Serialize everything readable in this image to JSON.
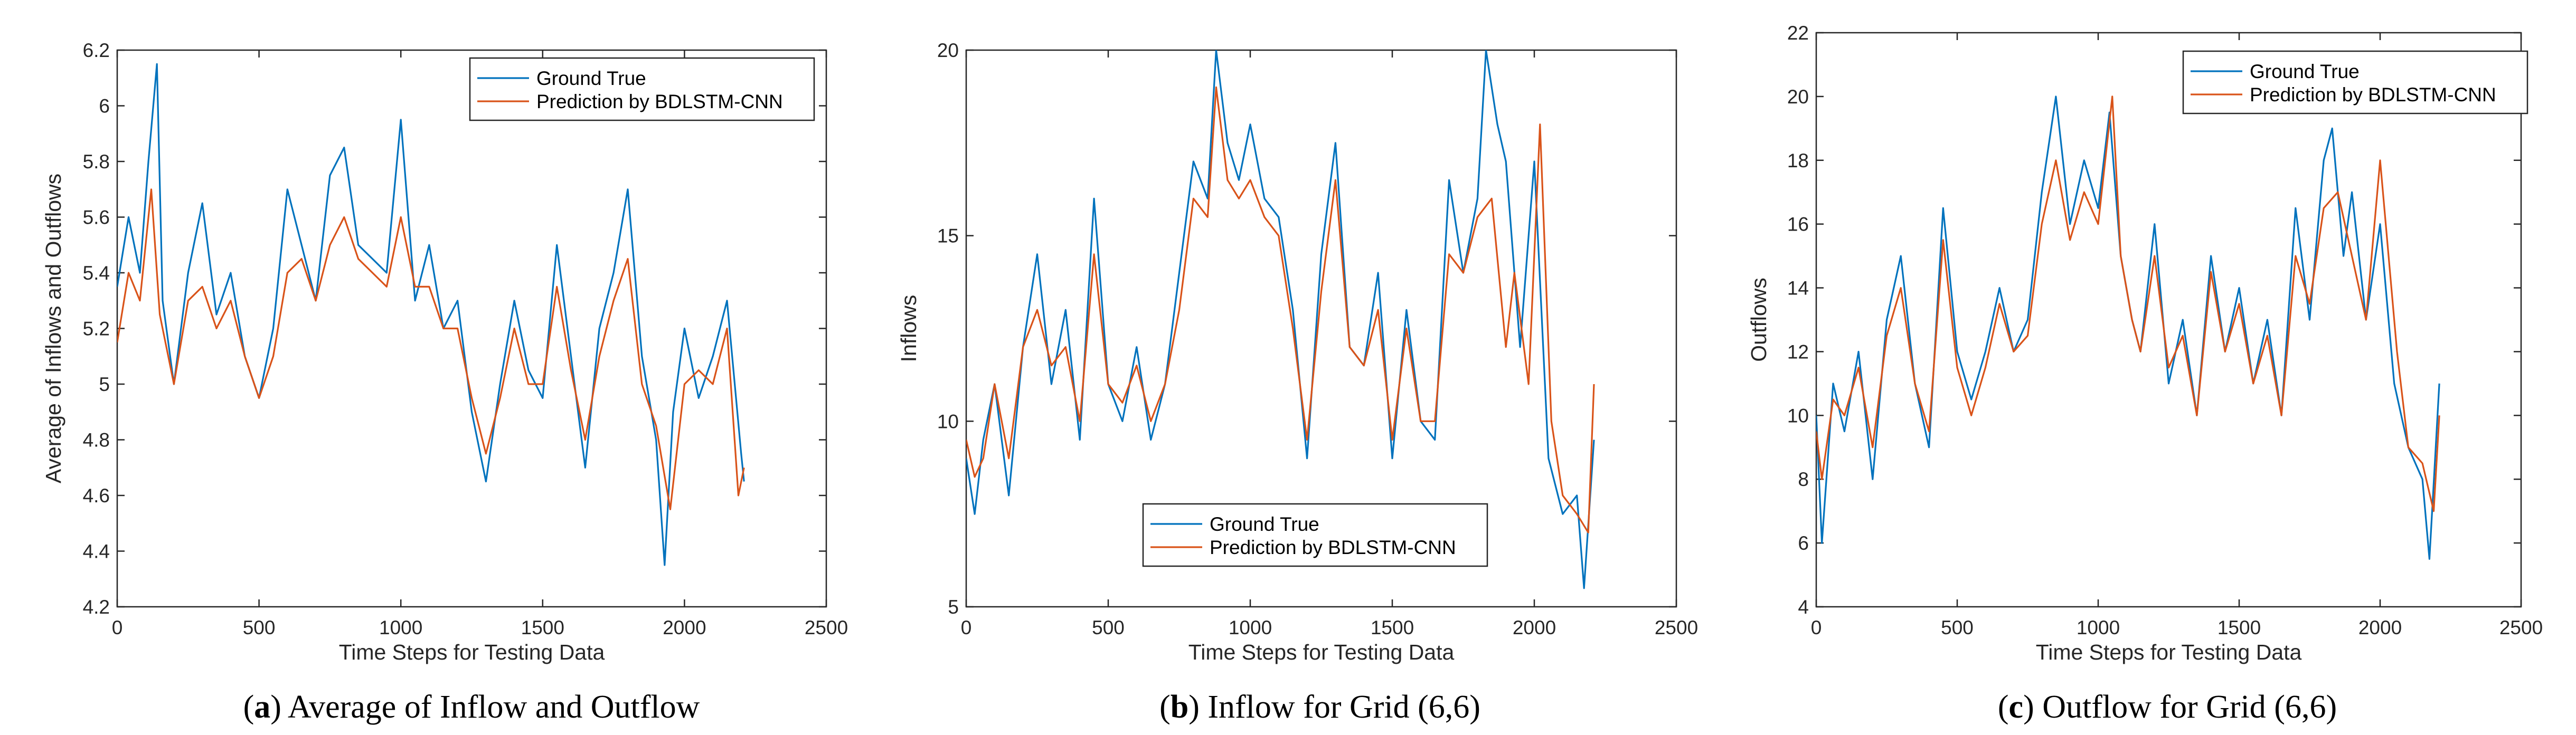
{
  "colors": {
    "ground_true": "#0072bd",
    "prediction": "#d95319",
    "axis": "#262626"
  },
  "chart_data": [
    {
      "type": "line",
      "caption_letter": "a",
      "caption_text": "Average of Inflow and Outflow",
      "xlabel": "Time Steps for Testing Data",
      "ylabel": "Average of Inflows and Outflows",
      "xlim": [
        0,
        2500
      ],
      "ylim": [
        4.2,
        6.2
      ],
      "xticks": [
        0,
        500,
        1000,
        1500,
        2000,
        2500
      ],
      "yticks": [
        4.2,
        4.4,
        4.6,
        4.8,
        5,
        5.2,
        5.4,
        5.6,
        5.8,
        6,
        6.2
      ],
      "legend_position": "top-right",
      "series": [
        {
          "name": "Ground True",
          "x": [
            0,
            40,
            80,
            110,
            140,
            160,
            200,
            250,
            300,
            350,
            400,
            450,
            500,
            550,
            600,
            650,
            700,
            750,
            800,
            850,
            900,
            950,
            1000,
            1050,
            1100,
            1150,
            1200,
            1250,
            1300,
            1350,
            1400,
            1450,
            1500,
            1550,
            1600,
            1650,
            1700,
            1750,
            1800,
            1850,
            1900,
            1930,
            1960,
            2000,
            2050,
            2100,
            2150,
            2200,
            2210
          ],
          "values": [
            5.35,
            5.6,
            5.4,
            5.8,
            6.15,
            5.3,
            5.0,
            5.4,
            5.65,
            5.25,
            5.4,
            5.1,
            4.95,
            5.2,
            5.7,
            5.5,
            5.3,
            5.75,
            5.85,
            5.5,
            5.45,
            5.4,
            5.95,
            5.3,
            5.5,
            5.2,
            5.3,
            4.9,
            4.65,
            5.0,
            5.3,
            5.05,
            4.95,
            5.5,
            5.1,
            4.7,
            5.2,
            5.4,
            5.7,
            5.1,
            4.8,
            4.35,
            4.9,
            5.2,
            4.95,
            5.1,
            5.3,
            4.75,
            4.65
          ]
        },
        {
          "name": "Prediction by BDLSTM-CNN",
          "x": [
            0,
            40,
            80,
            120,
            150,
            200,
            250,
            300,
            350,
            400,
            450,
            500,
            550,
            600,
            650,
            700,
            750,
            800,
            850,
            900,
            950,
            1000,
            1050,
            1100,
            1150,
            1200,
            1250,
            1300,
            1350,
            1400,
            1450,
            1500,
            1550,
            1600,
            1650,
            1700,
            1750,
            1800,
            1850,
            1900,
            1950,
            2000,
            2050,
            2100,
            2150,
            2190,
            2210
          ],
          "values": [
            5.15,
            5.4,
            5.3,
            5.7,
            5.25,
            5.0,
            5.3,
            5.35,
            5.2,
            5.3,
            5.1,
            4.95,
            5.1,
            5.4,
            5.45,
            5.3,
            5.5,
            5.6,
            5.45,
            5.4,
            5.35,
            5.6,
            5.35,
            5.35,
            5.2,
            5.2,
            4.95,
            4.75,
            4.95,
            5.2,
            5.0,
            5.0,
            5.35,
            5.05,
            4.8,
            5.1,
            5.3,
            5.45,
            5.0,
            4.85,
            4.55,
            5.0,
            5.05,
            5.0,
            5.2,
            4.6,
            4.7
          ]
        }
      ]
    },
    {
      "type": "line",
      "caption_letter": "b",
      "caption_text": "Inflow for Grid (6,6)",
      "xlabel": "Time Steps for Testing Data",
      "ylabel": "Inflows",
      "xlim": [
        0,
        2500
      ],
      "ylim": [
        5,
        20
      ],
      "xticks": [
        0,
        500,
        1000,
        1500,
        2000,
        2500
      ],
      "yticks": [
        5,
        10,
        15,
        20
      ],
      "legend_position": "bottom-right",
      "series": [
        {
          "name": "Ground True",
          "x": [
            0,
            30,
            60,
            100,
            150,
            200,
            250,
            300,
            350,
            400,
            450,
            500,
            550,
            600,
            650,
            700,
            750,
            800,
            850,
            880,
            920,
            960,
            1000,
            1050,
            1100,
            1150,
            1200,
            1250,
            1300,
            1350,
            1400,
            1450,
            1500,
            1550,
            1600,
            1650,
            1700,
            1750,
            1800,
            1830,
            1870,
            1900,
            1950,
            2000,
            2050,
            2100,
            2150,
            2175,
            2210
          ],
          "values": [
            9,
            7.5,
            9.5,
            11,
            8,
            12,
            14.5,
            11,
            13,
            9.5,
            16,
            11,
            10,
            12,
            9.5,
            11,
            14,
            17,
            16,
            20,
            17.5,
            16.5,
            18,
            16,
            15.5,
            13,
            9,
            14.5,
            17.5,
            12,
            11.5,
            14,
            9,
            13,
            10,
            9.5,
            16.5,
            14,
            16,
            20,
            18,
            17,
            12,
            17,
            9,
            7.5,
            8,
            5.5,
            9.5
          ]
        },
        {
          "name": "Prediction by BDLSTM-CNN",
          "x": [
            0,
            30,
            60,
            100,
            150,
            200,
            250,
            300,
            350,
            400,
            450,
            500,
            550,
            600,
            650,
            700,
            750,
            800,
            850,
            880,
            920,
            960,
            1000,
            1050,
            1100,
            1150,
            1200,
            1250,
            1300,
            1350,
            1400,
            1450,
            1500,
            1550,
            1600,
            1650,
            1700,
            1750,
            1800,
            1850,
            1900,
            1930,
            1980,
            2020,
            2060,
            2100,
            2150,
            2190,
            2210
          ],
          "values": [
            9.5,
            8.5,
            9,
            11,
            9,
            12,
            13,
            11.5,
            12,
            10,
            14.5,
            11,
            10.5,
            11.5,
            10,
            11,
            13,
            16,
            15.5,
            19,
            16.5,
            16,
            16.5,
            15.5,
            15,
            12.5,
            9.5,
            13.5,
            16.5,
            12,
            11.5,
            13,
            9.5,
            12.5,
            10,
            10,
            14.5,
            14,
            15.5,
            16,
            12,
            14,
            11,
            18,
            10,
            8,
            7.5,
            7,
            11
          ]
        }
      ]
    },
    {
      "type": "line",
      "caption_letter": "c",
      "caption_text": "Outflow for Grid (6,6)",
      "xlabel": "Time Steps for Testing Data",
      "ylabel": "Outflows",
      "xlim": [
        0,
        2500
      ],
      "ylim": [
        4,
        22
      ],
      "xticks": [
        0,
        500,
        1000,
        1500,
        2000,
        2500
      ],
      "yticks": [
        4,
        6,
        8,
        10,
        12,
        14,
        16,
        18,
        20,
        22
      ],
      "legend_position": "top-left",
      "series": [
        {
          "name": "Ground True",
          "x": [
            0,
            20,
            60,
            100,
            150,
            200,
            250,
            300,
            350,
            400,
            450,
            500,
            550,
            600,
            650,
            700,
            750,
            800,
            850,
            900,
            950,
            1000,
            1040,
            1080,
            1120,
            1150,
            1200,
            1250,
            1300,
            1350,
            1400,
            1450,
            1500,
            1550,
            1600,
            1650,
            1700,
            1750,
            1800,
            1830,
            1870,
            1900,
            1950,
            2000,
            2050,
            2100,
            2150,
            2175,
            2210
          ],
          "values": [
            10,
            6,
            11,
            9.5,
            12,
            8,
            13,
            15,
            11,
            9,
            16.5,
            12,
            10.5,
            12,
            14,
            12,
            13,
            17,
            20,
            16,
            18,
            16.5,
            19.5,
            15,
            13,
            12,
            16,
            11,
            13,
            10,
            15,
            12,
            14,
            11,
            13,
            10,
            16.5,
            13,
            18,
            19,
            15,
            17,
            13,
            16,
            11,
            9,
            8,
            5.5,
            11
          ]
        },
        {
          "name": "Prediction by BDLSTM-CNN",
          "x": [
            0,
            20,
            60,
            100,
            150,
            200,
            250,
            300,
            350,
            400,
            450,
            500,
            550,
            600,
            650,
            700,
            750,
            800,
            850,
            900,
            950,
            1000,
            1050,
            1080,
            1120,
            1150,
            1200,
            1250,
            1300,
            1350,
            1400,
            1450,
            1500,
            1550,
            1600,
            1650,
            1700,
            1750,
            1800,
            1850,
            1900,
            1950,
            2000,
            2030,
            2060,
            2100,
            2150,
            2190,
            2210
          ],
          "values": [
            9.5,
            8,
            10.5,
            10,
            11.5,
            9,
            12.5,
            14,
            11,
            9.5,
            15.5,
            11.5,
            10,
            11.5,
            13.5,
            12,
            12.5,
            16,
            18,
            15.5,
            17,
            16,
            20,
            15,
            13,
            12,
            15,
            11.5,
            12.5,
            10,
            14.5,
            12,
            13.5,
            11,
            12.5,
            10,
            15,
            13.5,
            16.5,
            17,
            15,
            13,
            18,
            15,
            12,
            9,
            8.5,
            7,
            10
          ]
        }
      ]
    }
  ],
  "legend": {
    "ground_true_label": "Ground True",
    "prediction_label": "Prediction by BDLSTM-CNN"
  }
}
